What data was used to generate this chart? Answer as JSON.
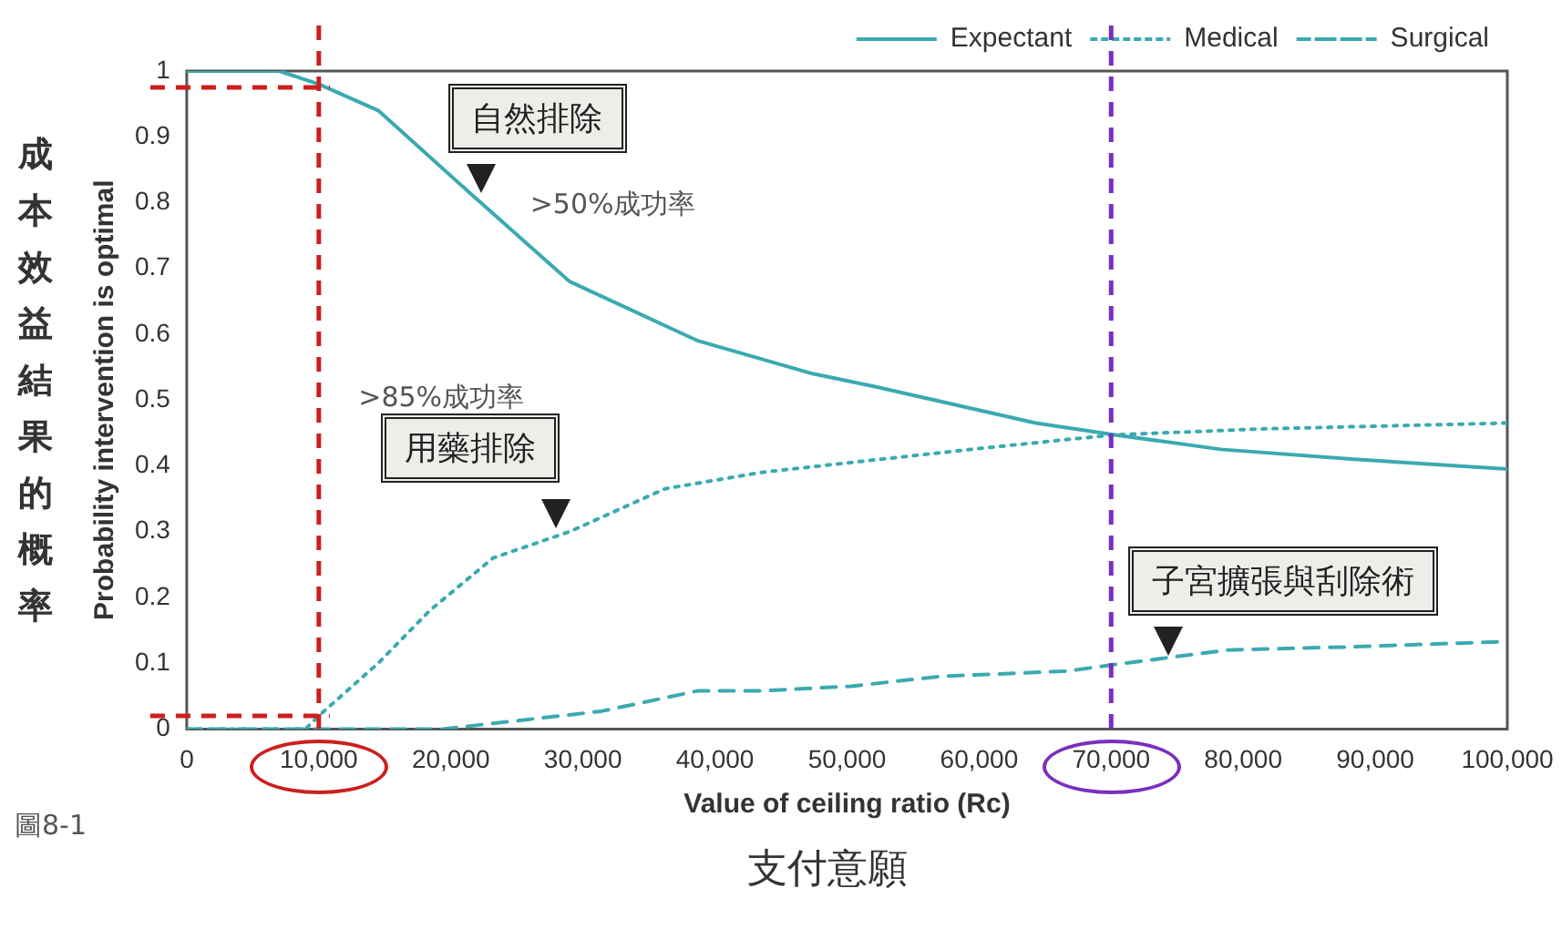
{
  "chart_data": {
    "type": "line",
    "xlabel": "Value of ceiling ratio (Rc)",
    "ylabel": "Probability intervention is optimal",
    "xlim": [
      0,
      100000
    ],
    "xticks": [
      0,
      {
        "value": 10000,
        "label": "10,000"
      },
      {
        "value": 20000,
        "label": "20,000"
      },
      {
        "value": 30000,
        "label": "30,000"
      },
      {
        "value": 40000,
        "label": "40,000"
      },
      {
        "value": 50000,
        "label": "50,000"
      },
      {
        "value": 60000,
        "label": "60,000"
      },
      {
        "value": 70000,
        "label": "70,000"
      },
      {
        "value": 80000,
        "label": "80,000"
      },
      {
        "value": 90000,
        "label": "90,000"
      },
      {
        "value": 100000,
        "label": "100,000"
      }
    ],
    "ylim": [
      0,
      1
    ],
    "yticks": [
      0,
      0.1,
      0.2,
      0.3,
      0.4,
      0.5,
      0.6,
      0.7,
      0.8,
      0.9,
      1
    ],
    "grid": false,
    "legend": "top right",
    "marker": "none",
    "series": [
      {
        "name": "Expectant",
        "color": "#3aaab0",
        "line_style": "solid",
        "x": [
          0,
          7000,
          10000,
          14500,
          21700,
          29000,
          38700,
          47400,
          52200,
          64300,
          70300,
          78300,
          88400,
          100000
        ],
        "values": [
          1,
          1,
          0.98,
          0.94,
          0.81,
          0.68,
          0.59,
          0.54,
          0.52,
          0.465,
          0.447,
          0.425,
          0.41,
          0.395
        ]
      },
      {
        "name": "Medical",
        "color": "#3aaab0",
        "line_style": "dotted",
        "x": [
          0,
          9000,
          10000,
          14500,
          18400,
          23200,
          29000,
          36200,
          43500,
          50300,
          59400,
          66700,
          70300,
          81200,
          100000
        ],
        "values": [
          0,
          0,
          0.02,
          0.1,
          0.18,
          0.26,
          0.3,
          0.365,
          0.39,
          0.405,
          0.425,
          0.44,
          0.447,
          0.456,
          0.465
        ]
      },
      {
        "name": "Surgical",
        "color": "#3aaab0",
        "line_style": "dashed",
        "x": [
          0,
          19400,
          31400,
          38700,
          43500,
          50300,
          57100,
          66700,
          70300,
          78800,
          88400,
          100000
        ],
        "values": [
          0,
          0,
          0.027,
          0.058,
          0.058,
          0.065,
          0.08,
          0.088,
          0.098,
          0.12,
          0.125,
          0.133
        ]
      }
    ],
    "ref_lines": [
      {
        "axis": "x",
        "value": 10000,
        "color": "#cc1f1f",
        "line_style": "dashed"
      },
      {
        "axis": "y",
        "value": 0.975,
        "color": "#cc1f1f",
        "line_style": "dashed"
      },
      {
        "axis": "y",
        "value": 0.02,
        "color": "#cc1f1f",
        "line_style": "dashed"
      },
      {
        "axis": "x",
        "value": 70000,
        "color": "#7b2fbf",
        "line_style": "dashed"
      }
    ],
    "annotations": [
      {
        "text": "自然排除",
        "x": 21700,
        "y": 0.81
      },
      ">50%成功率",
      ">85%成功率",
      {
        "text": "用藥排除",
        "x": 27400,
        "y": 0.3
      },
      {
        "text": "子宮擴張與刮除術",
        "x": 73800,
        "y": 0.107
      },
      "圖8-1",
      "成本效益結果的概率",
      "支付意願"
    ]
  }
}
